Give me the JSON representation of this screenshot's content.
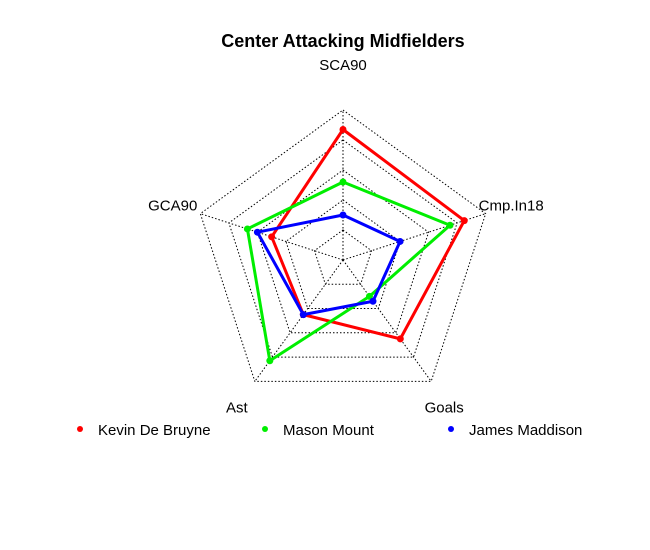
{
  "chart_data": {
    "type": "radar",
    "title": "Center Attacking Midfielders",
    "axes": [
      "SCA90",
      "Cmp.In18",
      "Goals",
      "Ast",
      "GCA90"
    ],
    "grid_levels": 5,
    "rlim": [
      0,
      1
    ],
    "legend_position": "bottom",
    "series": [
      {
        "name": "Kevin De Bruyne",
        "color": "#ff0000",
        "values": [
          0.87,
          0.85,
          0.65,
          0.45,
          0.5
        ]
      },
      {
        "name": "Mason Mount",
        "color": "#00ee00",
        "values": [
          0.52,
          0.75,
          0.3,
          0.83,
          0.67
        ]
      },
      {
        "name": "James Maddison",
        "color": "#0000ff",
        "values": [
          0.3,
          0.4,
          0.34,
          0.45,
          0.6
        ]
      }
    ]
  }
}
